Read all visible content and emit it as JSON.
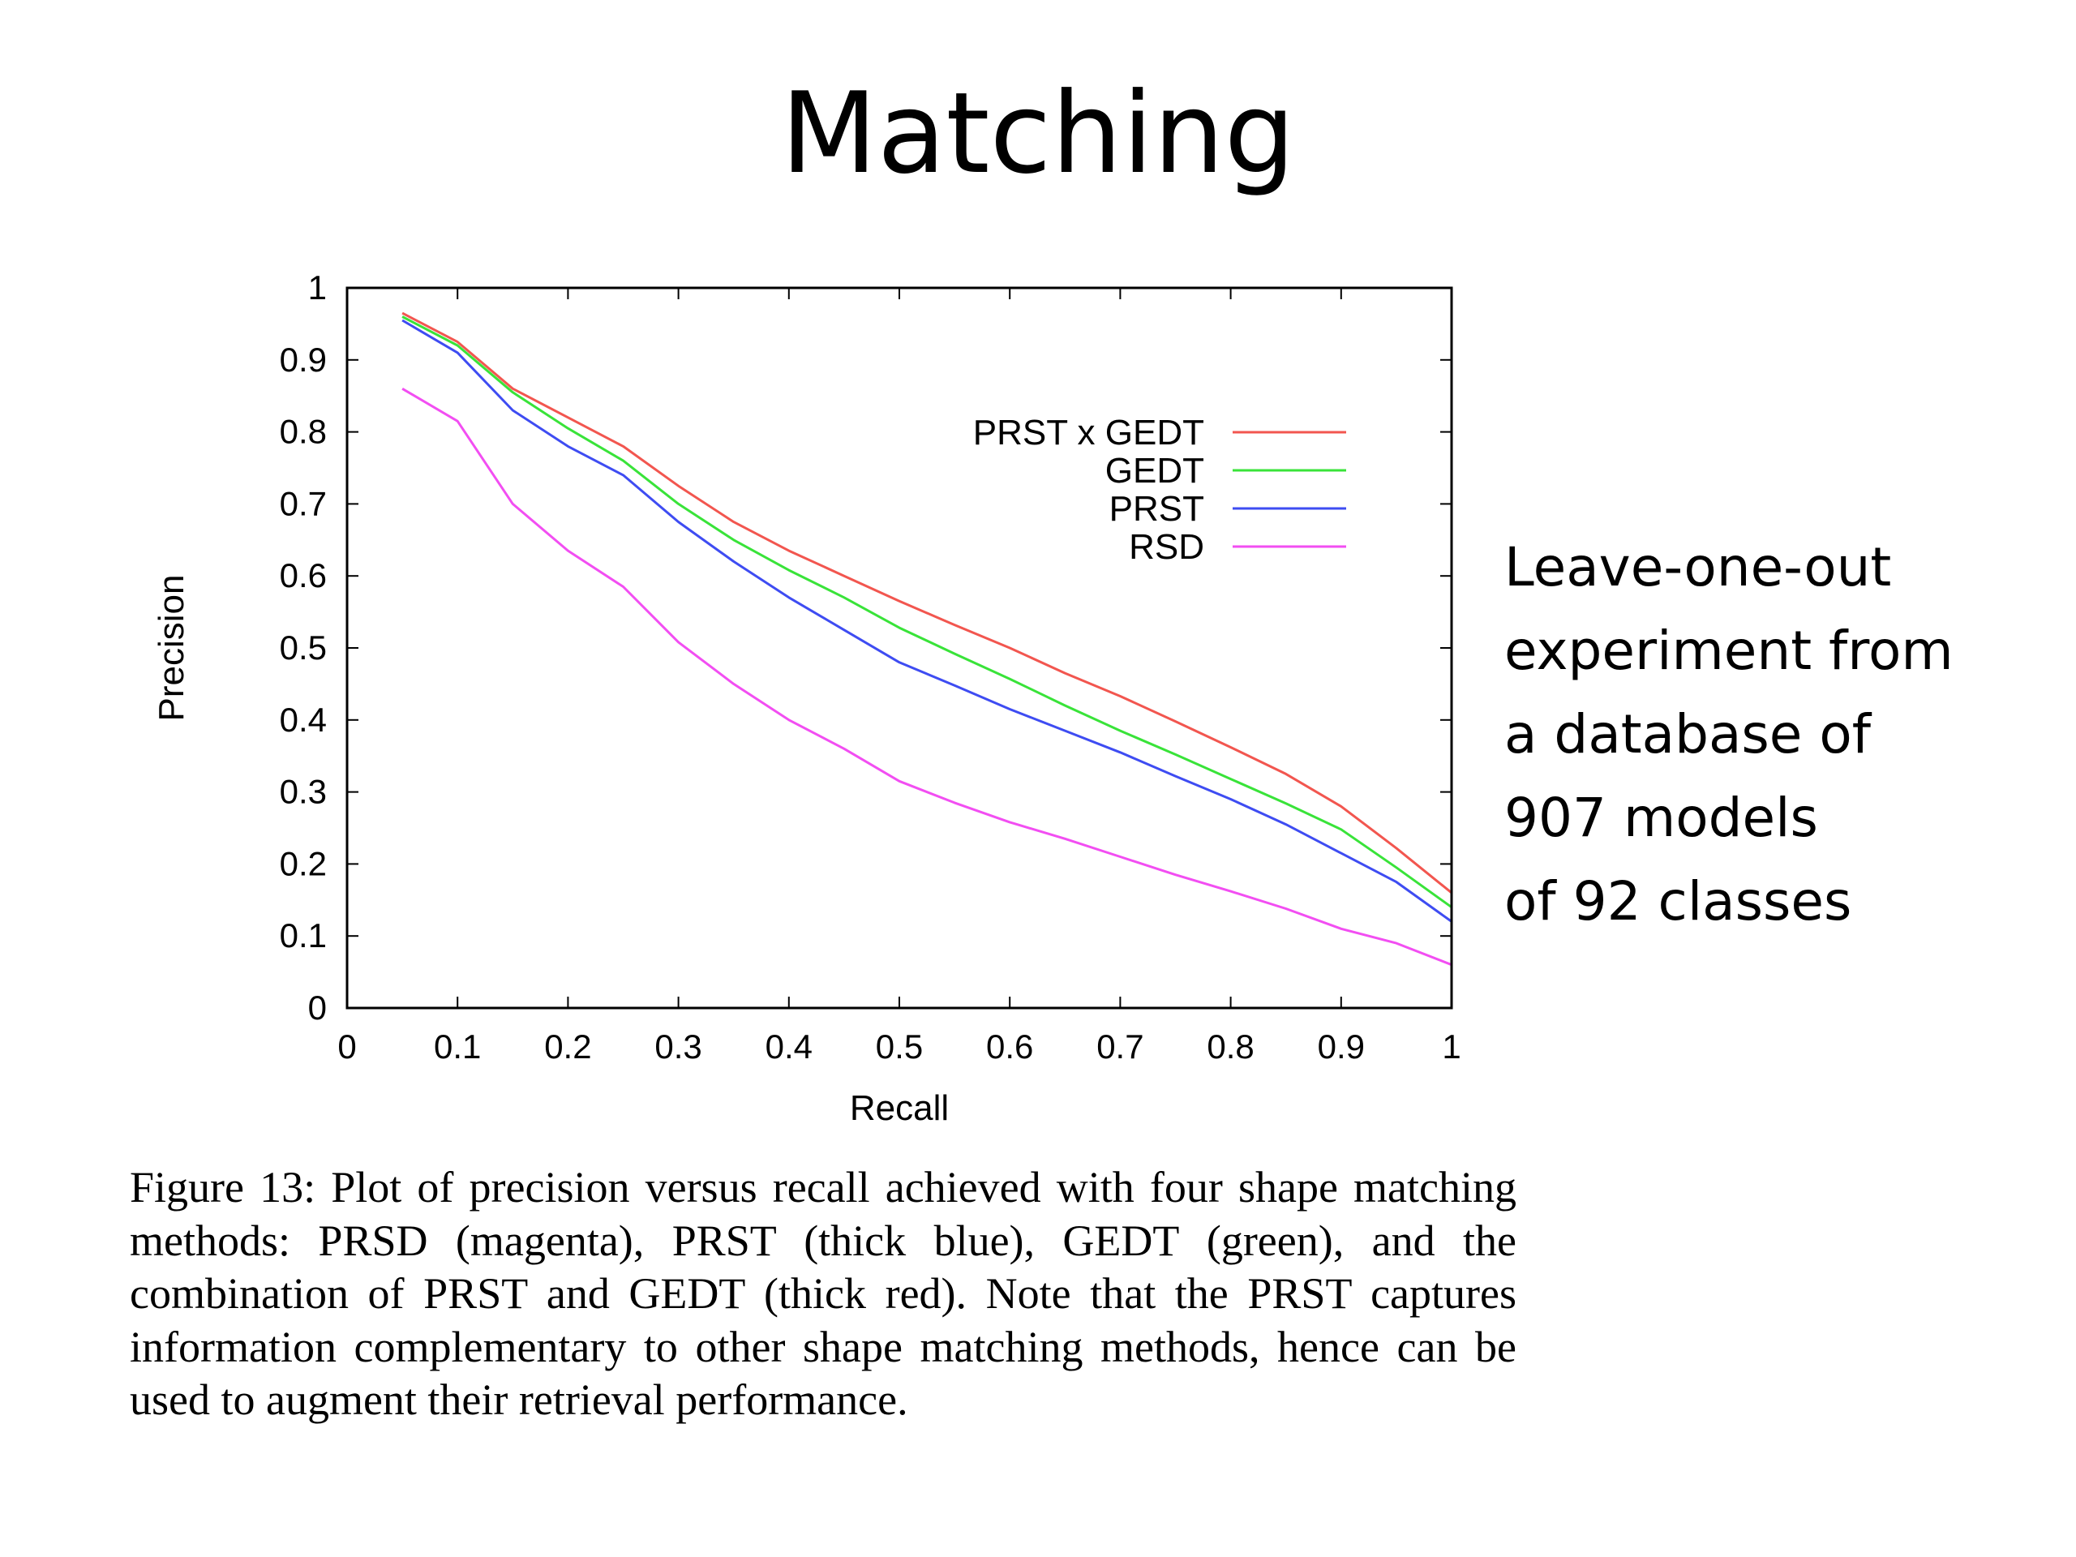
{
  "slide": {
    "title": "Matching"
  },
  "side_note": {
    "lines": [
      "Leave-one-out",
      "experiment from",
      "a database of",
      "907 models",
      "of 92 classes"
    ]
  },
  "caption": {
    "text": "Figure 13: Plot of precision versus recall achieved with four shape matching methods: PRSD (magenta), PRST (thick blue), GEDT (green), and the combination of PRST and GEDT (thick red). Note that the PRST captures information complementary to other shape matching methods, hence can be used to augment their retrieval performance."
  },
  "chart_data": {
    "type": "line",
    "title": "",
    "xlabel": "Recall",
    "ylabel": "Precision",
    "xlim": [
      0,
      1
    ],
    "ylim": [
      0,
      1
    ],
    "x_ticks": [
      "0",
      "0.1",
      "0.2",
      "0.3",
      "0.4",
      "0.5",
      "0.6",
      "0.7",
      "0.8",
      "0.9",
      "1"
    ],
    "y_ticks": [
      "0",
      "0.1",
      "0.2",
      "0.3",
      "0.4",
      "0.5",
      "0.6",
      "0.7",
      "0.8",
      "0.9",
      "1"
    ],
    "grid": false,
    "legend_position": "top-right",
    "x": [
      0.05,
      0.1,
      0.15,
      0.2,
      0.25,
      0.3,
      0.35,
      0.4,
      0.45,
      0.5,
      0.55,
      0.6,
      0.65,
      0.7,
      0.75,
      0.8,
      0.85,
      0.9,
      0.95,
      1.0
    ],
    "series": [
      {
        "name": "PRST x GEDT",
        "color": "#f2564f",
        "values": [
          0.965,
          0.925,
          0.86,
          0.82,
          0.78,
          0.725,
          0.675,
          0.635,
          0.6,
          0.565,
          0.532,
          0.5,
          0.465,
          0.433,
          0.398,
          0.362,
          0.325,
          0.28,
          0.222,
          0.16
        ]
      },
      {
        "name": "GEDT",
        "color": "#39e339",
        "values": [
          0.96,
          0.92,
          0.855,
          0.805,
          0.76,
          0.7,
          0.65,
          0.608,
          0.57,
          0.528,
          0.492,
          0.457,
          0.42,
          0.385,
          0.352,
          0.318,
          0.284,
          0.248,
          0.195,
          0.14
        ]
      },
      {
        "name": "PRST",
        "color": "#3e4cf2",
        "values": [
          0.955,
          0.91,
          0.83,
          0.78,
          0.74,
          0.675,
          0.62,
          0.57,
          0.525,
          0.48,
          0.448,
          0.415,
          0.385,
          0.355,
          0.322,
          0.29,
          0.255,
          0.215,
          0.175,
          0.12
        ]
      },
      {
        "name": "RSD",
        "color": "#f24ef2",
        "values": [
          0.86,
          0.815,
          0.7,
          0.635,
          0.585,
          0.508,
          0.45,
          0.4,
          0.36,
          0.315,
          0.285,
          0.258,
          0.235,
          0.21,
          0.185,
          0.162,
          0.138,
          0.11,
          0.09,
          0.06
        ]
      }
    ]
  }
}
